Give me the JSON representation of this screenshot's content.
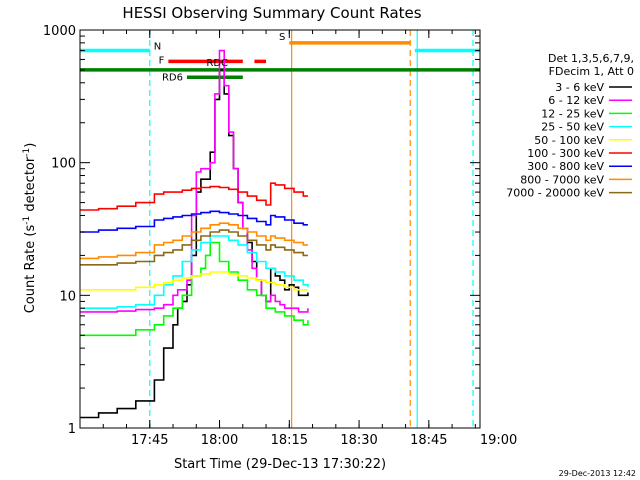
{
  "chart_data": {
    "type": "line",
    "title": "HESSI Observing Summary Count Rates",
    "xlabel": "Start Time (29-Dec-13 17:30:22)",
    "ylabel_main": "Count Rate (s",
    "ylabel_sup1": "-1",
    "ylabel_mid": " detector",
    "ylabel_sup2": "-1",
    "ylabel_end": ")",
    "y_scale": "log",
    "ylim": [
      1,
      1000
    ],
    "xlim_minutes": [
      0,
      86
    ],
    "x_ticks": [
      {
        "m": 15,
        "label": "17:45"
      },
      {
        "m": 30,
        "label": "18:00"
      },
      {
        "m": 45,
        "label": "18:15"
      },
      {
        "m": 60,
        "label": "18:30"
      },
      {
        "m": 75,
        "label": "18:45"
      },
      {
        "m": 90,
        "label": "19:00"
      }
    ],
    "y_ticks": [
      {
        "v": 1,
        "label": "1"
      },
      {
        "v": 10,
        "label": "10"
      },
      {
        "v": 100,
        "label": "100"
      },
      {
        "v": 1000,
        "label": "1000"
      }
    ],
    "legend_header": [
      "Det 1,3,5,6,7,9,",
      "FDecim 1, Att 0"
    ],
    "series": [
      {
        "name": "3 - 6 keV",
        "color": "#000000",
        "points": [
          [
            0,
            1.2
          ],
          [
            4,
            1.3
          ],
          [
            8,
            1.4
          ],
          [
            12,
            1.6
          ],
          [
            16,
            2.3
          ],
          [
            18,
            4
          ],
          [
            20,
            6
          ],
          [
            21,
            8
          ],
          [
            22,
            9
          ],
          [
            23,
            12
          ],
          [
            24,
            20
          ],
          [
            25,
            60
          ],
          [
            26,
            75
          ],
          [
            28,
            120
          ],
          [
            29,
            300
          ],
          [
            30,
            500
          ],
          [
            31,
            330
          ],
          [
            32,
            160
          ],
          [
            33,
            90
          ],
          [
            34,
            50
          ],
          [
            35,
            32
          ],
          [
            36,
            25
          ],
          [
            37,
            18
          ],
          [
            38,
            13
          ],
          [
            39,
            10
          ],
          [
            40,
            9
          ],
          [
            41,
            16
          ],
          [
            42,
            14
          ],
          [
            43,
            13
          ],
          [
            44,
            11
          ],
          [
            45,
            12
          ],
          [
            46,
            11.5
          ],
          [
            47,
            10
          ],
          [
            48,
            10
          ],
          [
            49,
            10.5
          ]
        ]
      },
      {
        "name": "6 - 12 keV",
        "color": "#ff00ff",
        "points": [
          [
            0,
            7.5
          ],
          [
            4,
            7.5
          ],
          [
            8,
            7.6
          ],
          [
            12,
            7.8
          ],
          [
            16,
            8
          ],
          [
            18,
            8.5
          ],
          [
            20,
            10
          ],
          [
            21,
            11
          ],
          [
            22,
            11
          ],
          [
            23,
            13
          ],
          [
            24,
            40
          ],
          [
            25,
            85
          ],
          [
            26,
            90
          ],
          [
            28,
            100
          ],
          [
            29,
            330
          ],
          [
            30,
            700
          ],
          [
            31,
            380
          ],
          [
            32,
            170
          ],
          [
            33,
            90
          ],
          [
            34,
            50
          ],
          [
            35,
            32
          ],
          [
            36,
            22
          ],
          [
            37,
            16
          ],
          [
            38,
            13
          ],
          [
            39,
            10
          ],
          [
            40,
            9
          ],
          [
            41,
            10
          ],
          [
            42,
            9
          ],
          [
            43,
            8.5
          ],
          [
            44,
            8
          ],
          [
            45,
            8
          ],
          [
            46,
            8
          ],
          [
            47,
            7.5
          ],
          [
            48,
            7.5
          ],
          [
            49,
            8
          ]
        ]
      },
      {
        "name": "12 - 25 keV",
        "color": "#00ff00",
        "points": [
          [
            0,
            5
          ],
          [
            4,
            5
          ],
          [
            8,
            5
          ],
          [
            12,
            5.5
          ],
          [
            16,
            6
          ],
          [
            18,
            7
          ],
          [
            20,
            8
          ],
          [
            22,
            10
          ],
          [
            24,
            14
          ],
          [
            26,
            16
          ],
          [
            27,
            20
          ],
          [
            28,
            25
          ],
          [
            30,
            18
          ],
          [
            32,
            15
          ],
          [
            34,
            13
          ],
          [
            36,
            11
          ],
          [
            38,
            10
          ],
          [
            40,
            8
          ],
          [
            42,
            7.5
          ],
          [
            44,
            7
          ],
          [
            46,
            6.5
          ],
          [
            48,
            6
          ],
          [
            49,
            6.5
          ]
        ]
      },
      {
        "name": "25 - 50 keV",
        "color": "#00ffff",
        "points": [
          [
            0,
            8
          ],
          [
            4,
            8
          ],
          [
            8,
            8.2
          ],
          [
            12,
            8.5
          ],
          [
            16,
            10
          ],
          [
            18,
            12
          ],
          [
            20,
            14
          ],
          [
            22,
            18
          ],
          [
            24,
            22
          ],
          [
            26,
            25
          ],
          [
            28,
            28
          ],
          [
            30,
            28
          ],
          [
            32,
            26
          ],
          [
            34,
            24
          ],
          [
            36,
            21
          ],
          [
            38,
            18
          ],
          [
            40,
            16
          ],
          [
            42,
            15
          ],
          [
            44,
            14
          ],
          [
            46,
            13
          ],
          [
            48,
            12
          ],
          [
            49,
            11.5
          ]
        ]
      },
      {
        "name": "50 - 100 keV",
        "color": "#ffff00",
        "points": [
          [
            0,
            11
          ],
          [
            4,
            11
          ],
          [
            8,
            11
          ],
          [
            12,
            11.5
          ],
          [
            16,
            12
          ],
          [
            18,
            12.5
          ],
          [
            20,
            13
          ],
          [
            22,
            13.5
          ],
          [
            24,
            14
          ],
          [
            26,
            14.5
          ],
          [
            28,
            15
          ],
          [
            30,
            15
          ],
          [
            32,
            14.5
          ],
          [
            34,
            14
          ],
          [
            36,
            13.5
          ],
          [
            38,
            13
          ],
          [
            40,
            12.5
          ],
          [
            42,
            12
          ],
          [
            44,
            11.5
          ],
          [
            46,
            11
          ],
          [
            48,
            11
          ],
          [
            49,
            11
          ]
        ]
      },
      {
        "name": "100 - 300 keV",
        "color": "#ff0000",
        "points": [
          [
            0,
            44
          ],
          [
            4,
            45
          ],
          [
            8,
            47
          ],
          [
            12,
            50
          ],
          [
            16,
            58
          ],
          [
            18,
            60
          ],
          [
            20,
            60
          ],
          [
            22,
            62
          ],
          [
            24,
            64
          ],
          [
            26,
            65
          ],
          [
            28,
            66
          ],
          [
            30,
            65
          ],
          [
            32,
            63
          ],
          [
            34,
            60
          ],
          [
            36,
            56
          ],
          [
            38,
            52
          ],
          [
            40,
            48
          ],
          [
            41,
            70
          ],
          [
            42,
            68
          ],
          [
            44,
            64
          ],
          [
            46,
            60
          ],
          [
            48,
            56
          ],
          [
            49,
            56
          ]
        ]
      },
      {
        "name": "300 - 800 keV",
        "color": "#0000ff",
        "points": [
          [
            0,
            30
          ],
          [
            4,
            31
          ],
          [
            8,
            32
          ],
          [
            12,
            33
          ],
          [
            16,
            37
          ],
          [
            18,
            38
          ],
          [
            20,
            39
          ],
          [
            22,
            40
          ],
          [
            24,
            41
          ],
          [
            26,
            42
          ],
          [
            28,
            43
          ],
          [
            30,
            42
          ],
          [
            32,
            41
          ],
          [
            34,
            40
          ],
          [
            36,
            38
          ],
          [
            38,
            36
          ],
          [
            40,
            34
          ],
          [
            41,
            40
          ],
          [
            42,
            39
          ],
          [
            44,
            37
          ],
          [
            46,
            35
          ],
          [
            48,
            34
          ],
          [
            49,
            34
          ]
        ]
      },
      {
        "name": "800 - 7000 keV",
        "color": "#ff8c00",
        "points": [
          [
            0,
            19
          ],
          [
            4,
            19.5
          ],
          [
            8,
            20
          ],
          [
            12,
            21
          ],
          [
            16,
            24
          ],
          [
            18,
            25
          ],
          [
            20,
            26
          ],
          [
            22,
            28
          ],
          [
            24,
            30
          ],
          [
            26,
            32
          ],
          [
            28,
            34
          ],
          [
            30,
            35
          ],
          [
            32,
            34
          ],
          [
            34,
            32
          ],
          [
            36,
            30
          ],
          [
            38,
            28
          ],
          [
            40,
            26
          ],
          [
            41,
            28
          ],
          [
            42,
            27
          ],
          [
            44,
            26
          ],
          [
            46,
            25
          ],
          [
            48,
            24
          ],
          [
            49,
            24
          ]
        ]
      },
      {
        "name": "7000 - 20000 keV",
        "color": "#8b6914",
        "points": [
          [
            0,
            17
          ],
          [
            4,
            17
          ],
          [
            8,
            17.5
          ],
          [
            12,
            18
          ],
          [
            16,
            20
          ],
          [
            18,
            21
          ],
          [
            20,
            22
          ],
          [
            22,
            24
          ],
          [
            24,
            26
          ],
          [
            26,
            28
          ],
          [
            28,
            30
          ],
          [
            30,
            31
          ],
          [
            32,
            30
          ],
          [
            34,
            28
          ],
          [
            36,
            26
          ],
          [
            38,
            24
          ],
          [
            40,
            22
          ],
          [
            41,
            24
          ],
          [
            42,
            23
          ],
          [
            44,
            22
          ],
          [
            46,
            21
          ],
          [
            48,
            20
          ],
          [
            49,
            20
          ]
        ]
      }
    ],
    "flag_bars": [
      {
        "label": "N",
        "color": "#00ffff",
        "segments": [
          [
            0,
            15
          ],
          [
            72,
            86
          ]
        ],
        "level": 700
      },
      {
        "label": "S",
        "color": "#ff8c00",
        "segments": [
          [
            45,
            71
          ]
        ],
        "level": 800
      },
      {
        "label": "F",
        "color": "#ff0000",
        "segments": [
          [
            19,
            35
          ],
          [
            37.5,
            40
          ]
        ],
        "level": 580
      },
      {
        "label": "RDC",
        "color": "#008000",
        "segments": [
          [
            0,
            86
          ]
        ],
        "level": 500
      },
      {
        "label": "RD6",
        "color": "#008000",
        "segments": [
          [
            23,
            35
          ]
        ],
        "level": 440
      }
    ],
    "vlines": [
      {
        "m": 15,
        "color": "#00ffff",
        "style": "dash"
      },
      {
        "m": 45.5,
        "color": "#ff8c00",
        "style": "solid"
      },
      {
        "m": 71,
        "color": "#ff8c00",
        "style": "dash"
      },
      {
        "m": 72.5,
        "color": "#00ffff",
        "style": "solid"
      },
      {
        "m": 84.5,
        "color": "#00ffff",
        "style": "dash"
      }
    ]
  },
  "footer": {
    "timestamp": "29-Dec-2013 12:42"
  }
}
